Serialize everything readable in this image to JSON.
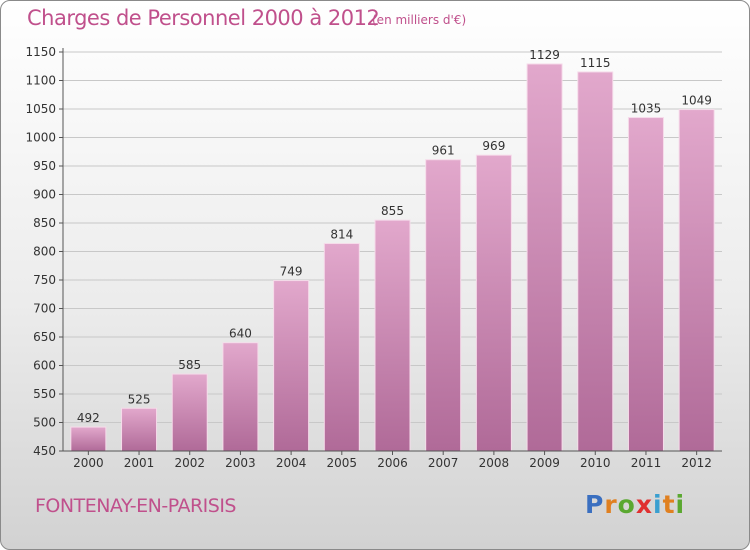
{
  "title": "Charges de Personnel 2000 à 2012",
  "unit_note": "(en milliers d'€)",
  "location": "FONTENAY-EN-PARISIS",
  "brand": {
    "text": "Proxiti",
    "letters": [
      "P",
      "r",
      "o",
      "x",
      "i",
      "t",
      "i"
    ],
    "colors": [
      "#3a6fc0",
      "#e08020",
      "#5aa830",
      "#e03030",
      "#3a9fd0",
      "#e08020",
      "#5aa830"
    ]
  },
  "colors": {
    "bar": "#d98cb8",
    "bar_dark": "#b86a98",
    "text_accent": "#c0508c",
    "axis": "#333333"
  },
  "chart_data": {
    "type": "bar",
    "title": "Charges de Personnel 2000 à 2012",
    "xlabel": "",
    "ylabel": "",
    "categories": [
      "2000",
      "2001",
      "2002",
      "2003",
      "2004",
      "2005",
      "2006",
      "2007",
      "2008",
      "2009",
      "2010",
      "2011",
      "2012"
    ],
    "values": [
      492,
      525,
      585,
      640,
      749,
      814,
      855,
      961,
      969,
      1129,
      1115,
      1035,
      1049
    ],
    "ylim": [
      450,
      1150
    ],
    "yticks": [
      450,
      500,
      550,
      600,
      650,
      700,
      750,
      800,
      850,
      900,
      950,
      1000,
      1050,
      1100,
      1150
    ],
    "grid": true
  }
}
